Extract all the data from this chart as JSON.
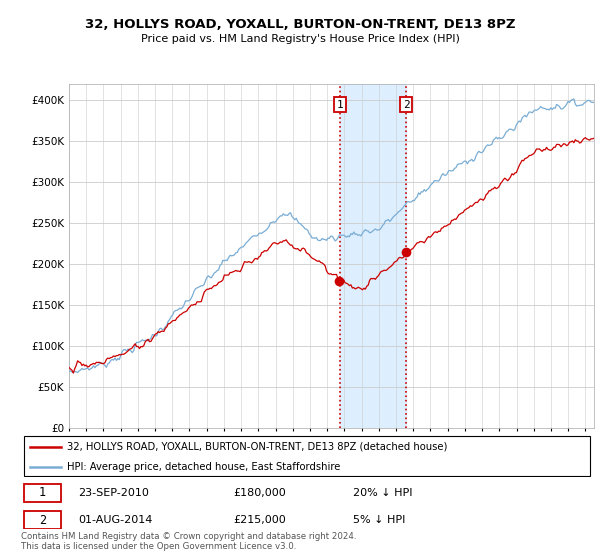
{
  "title": "32, HOLLYS ROAD, YOXALL, BURTON-ON-TRENT, DE13 8PZ",
  "subtitle": "Price paid vs. HM Land Registry's House Price Index (HPI)",
  "legend_line1": "32, HOLLYS ROAD, YOXALL, BURTON-ON-TRENT, DE13 8PZ (detached house)",
  "legend_line2": "HPI: Average price, detached house, East Staffordshire",
  "transaction1_date": "23-SEP-2010",
  "transaction1_price": "£180,000",
  "transaction1_hpi": "20% ↓ HPI",
  "transaction2_date": "01-AUG-2014",
  "transaction2_price": "£215,000",
  "transaction2_hpi": "5% ↓ HPI",
  "footnote": "Contains HM Land Registry data © Crown copyright and database right 2024.\nThis data is licensed under the Open Government Licence v3.0.",
  "red_color": "#cc0000",
  "blue_color": "#7aadd4",
  "shaded_color": "#ddeeff",
  "grid_color": "#cccccc",
  "ylim": [
    0,
    420000
  ],
  "yticks": [
    0,
    50000,
    100000,
    150000,
    200000,
    250000,
    300000,
    350000,
    400000
  ],
  "t1_year": 2010.75,
  "t2_year": 2014.583,
  "t1_price": 180000,
  "t2_price": 215000,
  "xmin": 1995,
  "xmax": 2025.5
}
